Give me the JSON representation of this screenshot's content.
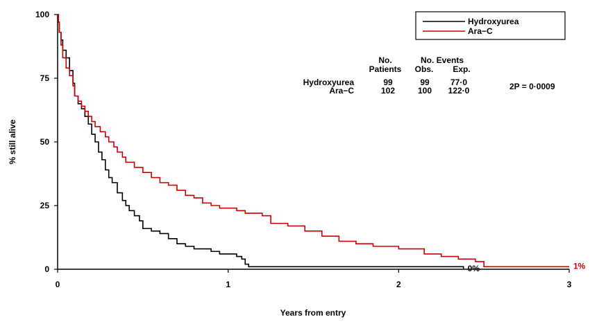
{
  "chart_data": {
    "type": "line",
    "title": "",
    "xlabel": "Years from entry",
    "ylabel": "% still alive",
    "xlim": [
      0,
      3
    ],
    "ylim": [
      0,
      100
    ],
    "xticks": [
      "0",
      "1",
      "2",
      "3"
    ],
    "yticks": [
      "0",
      "25",
      "50",
      "75",
      "100"
    ],
    "grid": false,
    "legend_position": "top-right",
    "series": [
      {
        "name": "Hydroxyurea",
        "color": "#000000",
        "step": true,
        "x": [
          0,
          0.005,
          0.01,
          0.02,
          0.03,
          0.05,
          0.07,
          0.09,
          0.1,
          0.12,
          0.14,
          0.16,
          0.18,
          0.2,
          0.22,
          0.24,
          0.26,
          0.28,
          0.3,
          0.32,
          0.35,
          0.38,
          0.4,
          0.42,
          0.45,
          0.48,
          0.5,
          0.55,
          0.6,
          0.65,
          0.7,
          0.75,
          0.8,
          0.85,
          0.9,
          0.95,
          1.0,
          1.05,
          1.08,
          1.1,
          1.12,
          1.5,
          2.0,
          2.35,
          2.38
        ],
        "y": [
          100,
          97,
          93,
          90,
          86,
          83,
          78,
          73,
          68,
          65,
          63,
          60,
          57,
          53,
          50,
          46,
          43,
          39,
          36,
          34,
          30,
          27,
          25,
          23,
          21,
          19,
          16,
          15,
          14,
          12,
          10,
          9,
          8,
          8,
          7,
          6,
          6,
          5,
          4,
          2,
          1,
          1,
          1,
          1,
          0
        ]
      },
      {
        "name": "Ara-C",
        "color": "#cc0000",
        "step": true,
        "x": [
          0,
          0.005,
          0.01,
          0.02,
          0.03,
          0.05,
          0.07,
          0.09,
          0.1,
          0.12,
          0.14,
          0.16,
          0.18,
          0.2,
          0.22,
          0.25,
          0.28,
          0.3,
          0.33,
          0.35,
          0.38,
          0.4,
          0.45,
          0.5,
          0.55,
          0.6,
          0.65,
          0.7,
          0.75,
          0.8,
          0.85,
          0.9,
          0.95,
          1.0,
          1.05,
          1.1,
          1.2,
          1.25,
          1.35,
          1.45,
          1.55,
          1.65,
          1.75,
          1.85,
          2.0,
          2.15,
          2.25,
          2.35,
          2.45,
          2.5,
          3.0
        ],
        "y": [
          100,
          97,
          93,
          88,
          83,
          79,
          76,
          72,
          68,
          66,
          64,
          62,
          60,
          58,
          56,
          54,
          52,
          50,
          48,
          46,
          44,
          42,
          40,
          38,
          36,
          34,
          33,
          31,
          29,
          28,
          26,
          25,
          24,
          24,
          23,
          22,
          21,
          18,
          17,
          15,
          13,
          11,
          10,
          9,
          8,
          6,
          5,
          4,
          3,
          1,
          1
        ]
      }
    ],
    "end_labels": [
      {
        "series": "Hydroxyurea",
        "text": "0%",
        "x": 2.38,
        "y": 0
      },
      {
        "series": "Ara-C",
        "text": "1%",
        "x": 3.0,
        "y": 1
      }
    ],
    "summary_table": {
      "header_line1": {
        "patients": "No.",
        "events": "No. Events"
      },
      "header_line2": {
        "patients": "Patients",
        "obs": "Obs.",
        "exp": "Exp."
      },
      "rows": [
        {
          "name": "Hydroxyurea",
          "patients": "99",
          "obs": "99",
          "exp": "77·0"
        },
        {
          "name": "Ara−C",
          "patients": "102",
          "obs": "100",
          "exp": "122·0"
        }
      ],
      "p_value": "2P = 0·0009"
    },
    "legend": {
      "entries": [
        {
          "label": "Hydroxyurea",
          "color": "#000000"
        },
        {
          "label": "Ara−C",
          "color": "#cc0000"
        }
      ]
    }
  }
}
